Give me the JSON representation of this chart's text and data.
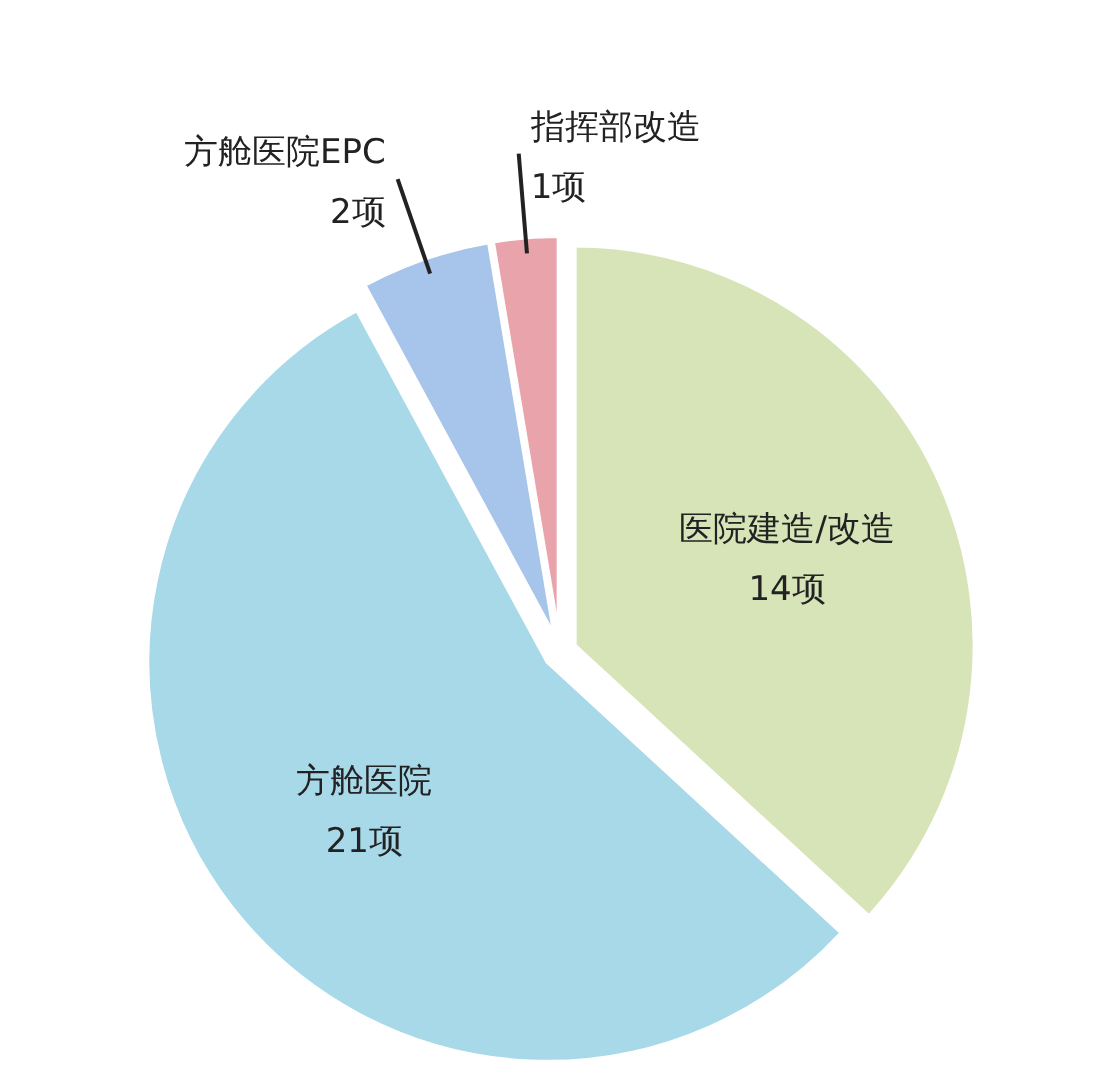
{
  "chart_data": {
    "type": "pie",
    "categories": [
      "医院建造/改造",
      "方舱医院",
      "方舱医院EPC",
      "指挥部改造"
    ],
    "values": [
      14,
      21,
      2,
      1
    ],
    "value_labels": [
      "14项",
      "21项",
      "2项",
      "1项"
    ],
    "colors": [
      "#d6e4b7",
      "#a8d9e9",
      "#a7c4ea",
      "#e9a3aa"
    ]
  }
}
